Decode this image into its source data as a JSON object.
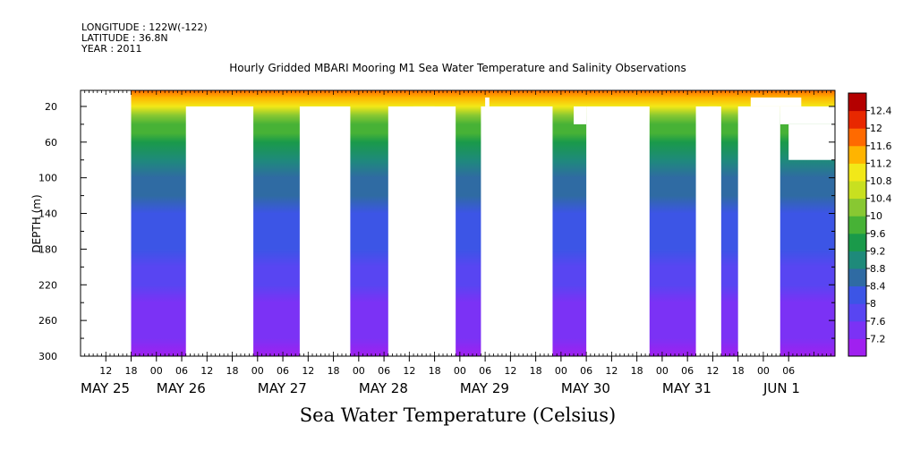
{
  "header": {
    "longitude": "LONGITUDE : 122W(-122)",
    "latitude": "LATITUDE : 36.8N",
    "year": "YEAR : 2011"
  },
  "chart_data": {
    "type": "heatmap",
    "title": "Hourly Gridded MBARI Mooring M1 Sea Water Temperature and Salinity Observations",
    "subtitle": "Sea Water Temperature (Celsius)",
    "ylabel": "DEPTH (m)",
    "y_ticks": [
      20,
      60,
      100,
      140,
      180,
      220,
      260,
      300
    ],
    "ylim": [
      300,
      2
    ],
    "x_start": "2011-05-25 06:00",
    "x_end": "2011-06-01 17:00",
    "x_hour_ticks": [
      "12",
      "18",
      "00",
      "06",
      "12",
      "18",
      "00",
      "06",
      "12",
      "18",
      "00",
      "06",
      "12",
      "18",
      "00",
      "06",
      "12",
      "18",
      "00",
      "06",
      "12",
      "18",
      "00",
      "06",
      "12",
      "18",
      "00",
      "06"
    ],
    "x_day_labels": [
      "MAY 25",
      "MAY 26",
      "MAY 27",
      "MAY 28",
      "MAY 29",
      "MAY 30",
      "MAY 31",
      "JUN  1"
    ],
    "colorbar": {
      "levels": [
        7.2,
        7.6,
        8,
        8.4,
        8.8,
        9.2,
        9.6,
        10,
        10.4,
        10.8,
        11.2,
        11.6,
        12,
        12.4
      ],
      "colors": [
        "#a020f0",
        "#7b32f5",
        "#5845f2",
        "#3c55e6",
        "#2f6ba3",
        "#1e8a7a",
        "#1a9a4a",
        "#47b236",
        "#88c832",
        "#c8e020",
        "#f2e818",
        "#ffb400",
        "#ff6a00",
        "#e82800",
        "#b40000"
      ]
    },
    "depth_profile": {
      "depths": [
        2,
        10,
        20,
        30,
        40,
        50,
        60,
        80,
        100,
        120,
        140,
        160,
        180,
        200,
        220,
        240,
        260,
        280,
        300
      ],
      "temperature": [
        11.9,
        11.4,
        10.9,
        10.3,
        9.9,
        9.6,
        9.3,
        9.0,
        8.75,
        8.5,
        8.35,
        8.15,
        8.0,
        7.85,
        7.7,
        7.55,
        7.4,
        7.25,
        7.15
      ]
    },
    "gaps": [
      {
        "start": "2011-05-25 06:00",
        "end": "2011-05-25 18:00",
        "depth_from": 2,
        "depth_to": 300
      },
      {
        "start": "2011-05-26 07:00",
        "end": "2011-05-26 23:00",
        "depth_from": 20,
        "depth_to": 300
      },
      {
        "start": "2011-05-27 10:00",
        "end": "2011-05-27 22:00",
        "depth_from": 20,
        "depth_to": 300
      },
      {
        "start": "2011-05-28 07:00",
        "end": "2011-05-28 23:00",
        "depth_from": 20,
        "depth_to": 300
      },
      {
        "start": "2011-05-28 13:00",
        "end": "2011-05-28 18:00",
        "depth_from": 20,
        "depth_to": 40
      },
      {
        "start": "2011-05-29 05:00",
        "end": "2011-05-29 22:00",
        "depth_from": 20,
        "depth_to": 300
      },
      {
        "start": "2011-05-29 06:00",
        "end": "2011-05-29 07:00",
        "depth_from": 10,
        "depth_to": 20
      },
      {
        "start": "2011-05-30 03:00",
        "end": "2011-05-30 06:00",
        "depth_from": 20,
        "depth_to": 40
      },
      {
        "start": "2011-05-30 06:00",
        "end": "2011-05-30 21:00",
        "depth_from": 20,
        "depth_to": 300
      },
      {
        "start": "2011-05-31 08:00",
        "end": "2011-05-31 14:00",
        "depth_from": 20,
        "depth_to": 300
      },
      {
        "start": "2011-05-31 11:00",
        "end": "2011-05-31 13:00",
        "depth_from": 20,
        "depth_to": 40
      },
      {
        "start": "2011-05-31 18:00",
        "end": "2011-06-01 04:00",
        "depth_from": 20,
        "depth_to": 300
      },
      {
        "start": "2011-05-31 21:00",
        "end": "2011-06-01 09:00",
        "depth_from": 10,
        "depth_to": 20
      },
      {
        "start": "2011-06-01 04:00",
        "end": "2011-06-01 17:00",
        "depth_from": 20,
        "depth_to": 40
      },
      {
        "start": "2011-06-01 06:00",
        "end": "2011-06-01 17:00",
        "depth_from": 40,
        "depth_to": 80
      }
    ]
  }
}
